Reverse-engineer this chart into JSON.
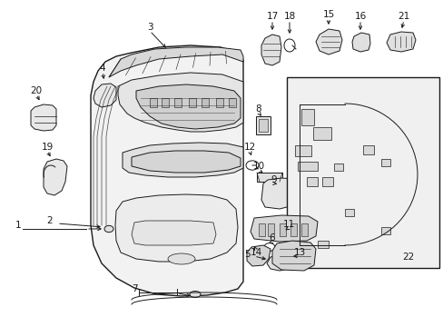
{
  "bg_color": "#ffffff",
  "line_color": "#1a1a1a",
  "fig_width": 4.89,
  "fig_height": 3.6,
  "dpi": 100,
  "label_fontsize": 7.5,
  "label_fontsize_sm": 6.5
}
